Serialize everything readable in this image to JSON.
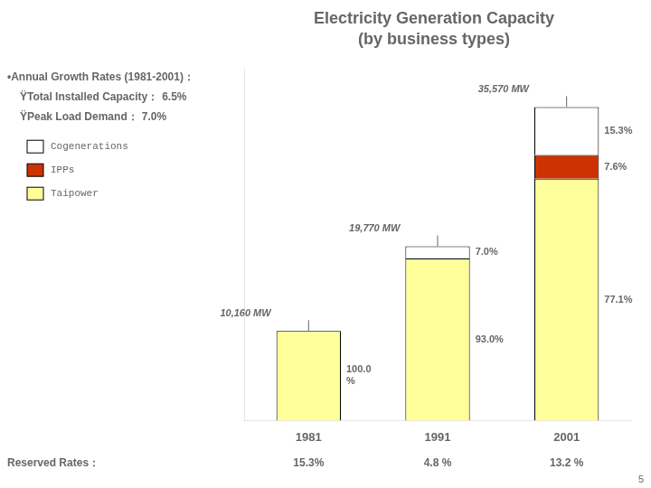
{
  "chart_data": {
    "type": "bar",
    "title": "Electricity Generation Capacity",
    "subtitle": "(by business types)",
    "categories": [
      "1981",
      "1991",
      "2001"
    ],
    "stacked": true,
    "series": [
      {
        "name": "Taipower",
        "color": "#ffff99",
        "values": [
          10160,
          18386.1,
          27424.47
        ],
        "shares": [
          100.0,
          93.0,
          77.1
        ],
        "share_labels": [
          "100.0\n%",
          "93.0%",
          "77.1%"
        ]
      },
      {
        "name": "IPPs",
        "color": "#cc3300",
        "values": [
          0,
          0,
          2703.32
        ],
        "shares": [
          0.0,
          0.0,
          7.6
        ],
        "share_labels": [
          null,
          null,
          "7.6%"
        ]
      },
      {
        "name": "Cogenerations",
        "color": "#ffffff",
        "values": [
          0,
          1383.9,
          5442.21
        ],
        "shares": [
          0.0,
          7.0,
          15.3
        ],
        "share_labels": [
          null,
          "7.0%",
          "15.3%"
        ]
      }
    ],
    "totals": [
      10160,
      19770,
      35570
    ],
    "total_labels": [
      "10,160 MW",
      "19,770 MW",
      "35,570 MW"
    ],
    "ylim": [
      0,
      40000
    ],
    "tick_labels": "x",
    "grid": false,
    "legend": "left",
    "annotations": [
      {
        "text": "•Annual Growth Rates (1981-2001)："
      },
      {
        "text": "ŸTotal Installed Capacity：",
        "value": 6.5,
        "label": "6.5%"
      },
      {
        "text": "ŸPeak Load Demand：",
        "value": 7.0,
        "label": "7.0%"
      }
    ],
    "reserved_rates": {
      "title": "Reserved Rates：",
      "values": [
        15.3,
        4.8,
        13.2
      ],
      "labels": [
        "15.3%",
        "4.8 %",
        "13.2 %"
      ]
    },
    "page_number": "5"
  }
}
